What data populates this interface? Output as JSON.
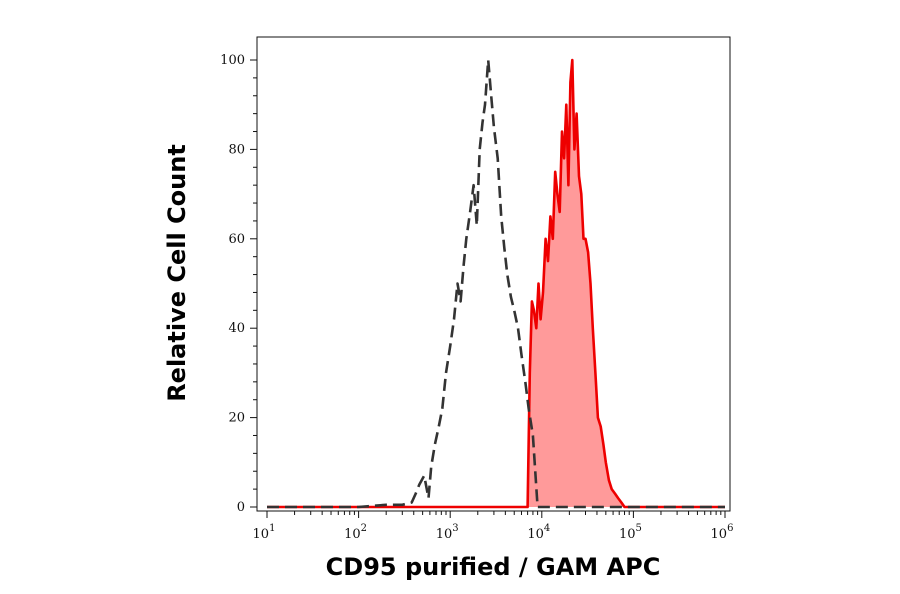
{
  "chart_data": {
    "type": "area",
    "xlabel": "CD95 purified / GAM APC",
    "ylabel": "Relative Cell Count",
    "x_scale": "log",
    "xlim": [
      10,
      1000000
    ],
    "ylim": [
      0,
      100
    ],
    "x_ticks": [
      {
        "base": "10",
        "exp": "1",
        "value": 10
      },
      {
        "base": "10",
        "exp": "2",
        "value": 100
      },
      {
        "base": "10",
        "exp": "3",
        "value": 1000
      },
      {
        "base": "10",
        "exp": "4",
        "value": 10000
      },
      {
        "base": "10",
        "exp": "5",
        "value": 100000
      },
      {
        "base": "10",
        "exp": "6",
        "value": 1000000
      }
    ],
    "y_ticks": [
      "0",
      "20",
      "40",
      "60",
      "80",
      "100"
    ],
    "grid": false,
    "series": [
      {
        "style": "dashed-outline",
        "color": "#333333",
        "x": [
          10,
          100,
          200,
          300,
          380,
          420,
          460,
          520,
          580,
          620,
          680,
          750,
          820,
          900,
          1000,
          1100,
          1200,
          1300,
          1400,
          1500,
          1650,
          1800,
          1950,
          2100,
          2250,
          2400,
          2600,
          2800,
          3000,
          3300,
          3600,
          3900,
          4200,
          4600,
          5000,
          5500,
          6000,
          6600,
          7200,
          8000,
          9000,
          1000000
        ],
        "y": [
          0,
          0,
          0.5,
          0.5,
          1,
          3,
          5,
          7,
          2,
          9,
          14,
          18,
          22,
          30,
          36,
          42,
          50,
          46,
          54,
          60,
          66,
          72,
          63,
          80,
          86,
          90,
          100,
          92,
          85,
          78,
          65,
          58,
          52,
          47,
          44,
          40,
          34,
          28,
          22,
          16,
          0,
          0
        ]
      },
      {
        "style": "filled",
        "color": "#ee0000",
        "fill": "#ff9a9a",
        "x": [
          10,
          7000,
          7400,
          7800,
          8200,
          8700,
          9200,
          9700,
          10300,
          11000,
          11700,
          12400,
          13200,
          14000,
          14800,
          15700,
          16600,
          17500,
          18500,
          19500,
          20500,
          21500,
          22700,
          24000,
          25500,
          27000,
          28500,
          30000,
          32000,
          34000,
          36000,
          38500,
          41000,
          44000,
          47000,
          50000,
          54000,
          58000,
          63000,
          68000,
          74000,
          80000,
          1000000
        ],
        "y": [
          0,
          0,
          30,
          46,
          44,
          40,
          50,
          42,
          48,
          60,
          55,
          65,
          60,
          75,
          70,
          66,
          84,
          78,
          90,
          72,
          95,
          100,
          80,
          88,
          74,
          70,
          60,
          60,
          57,
          50,
          40,
          30,
          20,
          18,
          14,
          10,
          6,
          4,
          3,
          2,
          1,
          0,
          0
        ]
      }
    ]
  }
}
